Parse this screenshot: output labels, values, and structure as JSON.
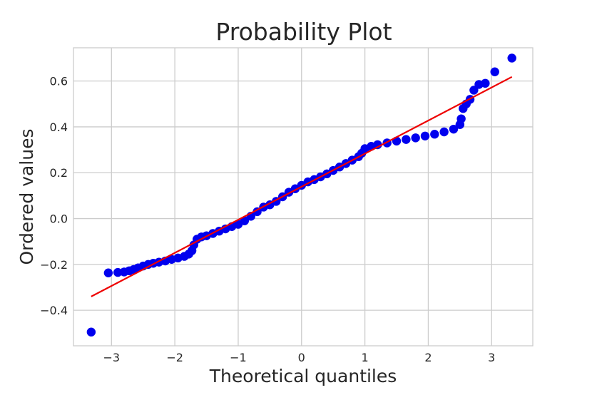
{
  "chart_data": {
    "type": "scatter",
    "title": "Probability Plot",
    "xlabel": "Theoretical quantiles",
    "ylabel": "Ordered values",
    "xlim": [
      -3.6,
      3.65
    ],
    "ylim": [
      -0.555,
      0.745
    ],
    "grid": true,
    "x_ticks": [
      -3,
      -2,
      -1,
      0,
      1,
      2,
      3
    ],
    "y_ticks": [
      -0.4,
      -0.2,
      0.0,
      0.2,
      0.4,
      0.6
    ],
    "x_tick_labels": [
      "−3",
      "−2",
      "−1",
      "0",
      "1",
      "2",
      "3"
    ],
    "y_tick_labels": [
      "−0.4",
      "−0.2",
      "0.0",
      "0.2",
      "0.4",
      "0.6"
    ],
    "series": [
      {
        "marker_color": "#0000ee",
        "points": [
          [
            -3.32,
            -0.495
          ],
          [
            -3.05,
            -0.237
          ],
          [
            -2.9,
            -0.235
          ],
          [
            -2.8,
            -0.233
          ],
          [
            -2.72,
            -0.228
          ],
          [
            -2.65,
            -0.222
          ],
          [
            -2.58,
            -0.215
          ],
          [
            -2.5,
            -0.207
          ],
          [
            -2.42,
            -0.2
          ],
          [
            -2.34,
            -0.195
          ],
          [
            -2.25,
            -0.19
          ],
          [
            -2.15,
            -0.185
          ],
          [
            -2.05,
            -0.178
          ],
          [
            -1.95,
            -0.172
          ],
          [
            -1.85,
            -0.165
          ],
          [
            -1.78,
            -0.155
          ],
          [
            -1.73,
            -0.14
          ],
          [
            -1.7,
            -0.115
          ],
          [
            -1.65,
            -0.09
          ],
          [
            -1.58,
            -0.08
          ],
          [
            -1.5,
            -0.075
          ],
          [
            -1.4,
            -0.065
          ],
          [
            -1.3,
            -0.055
          ],
          [
            -1.2,
            -0.045
          ],
          [
            -1.1,
            -0.035
          ],
          [
            -1.0,
            -0.025
          ],
          [
            -0.9,
            -0.01
          ],
          [
            -0.8,
            0.01
          ],
          [
            -0.7,
            0.03
          ],
          [
            -0.6,
            0.05
          ],
          [
            -0.5,
            0.06
          ],
          [
            -0.4,
            0.075
          ],
          [
            -0.3,
            0.095
          ],
          [
            -0.2,
            0.115
          ],
          [
            -0.1,
            0.13
          ],
          [
            0.0,
            0.145
          ],
          [
            0.1,
            0.16
          ],
          [
            0.2,
            0.17
          ],
          [
            0.3,
            0.182
          ],
          [
            0.4,
            0.195
          ],
          [
            0.5,
            0.21
          ],
          [
            0.6,
            0.225
          ],
          [
            0.7,
            0.24
          ],
          [
            0.8,
            0.255
          ],
          [
            0.9,
            0.27
          ],
          [
            0.95,
            0.285
          ],
          [
            1.0,
            0.305
          ],
          [
            1.1,
            0.315
          ],
          [
            1.2,
            0.322
          ],
          [
            1.35,
            0.33
          ],
          [
            1.5,
            0.338
          ],
          [
            1.65,
            0.345
          ],
          [
            1.8,
            0.352
          ],
          [
            1.95,
            0.36
          ],
          [
            2.1,
            0.368
          ],
          [
            2.25,
            0.378
          ],
          [
            2.4,
            0.39
          ],
          [
            2.5,
            0.41
          ],
          [
            2.52,
            0.435
          ],
          [
            2.55,
            0.48
          ],
          [
            2.6,
            0.5
          ],
          [
            2.66,
            0.52
          ],
          [
            2.72,
            0.56
          ],
          [
            2.8,
            0.585
          ],
          [
            2.9,
            0.59
          ],
          [
            3.05,
            0.64
          ],
          [
            3.32,
            0.7
          ]
        ]
      },
      {
        "line_color": "#ee0000",
        "fit_line": [
          [
            -3.32,
            -0.34
          ],
          [
            3.32,
            0.618
          ]
        ]
      }
    ]
  }
}
